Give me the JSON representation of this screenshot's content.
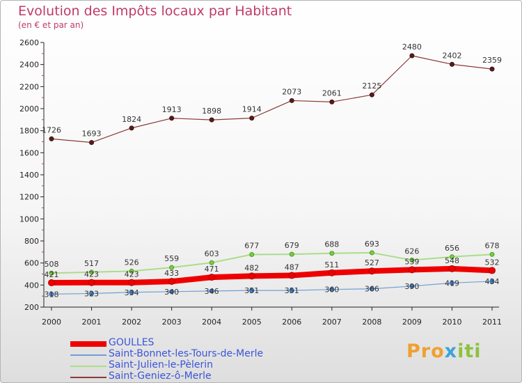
{
  "title": "Evolution des Impôts locaux par Habitant",
  "subtitle": "(en € et par an)",
  "logo": "Proxiti",
  "chart_data": {
    "type": "line",
    "x": [
      2000,
      2001,
      2002,
      2003,
      2004,
      2005,
      2006,
      2007,
      2008,
      2009,
      2010,
      2011
    ],
    "ylim": [
      200,
      2600
    ],
    "yticks": [
      200,
      400,
      600,
      800,
      1000,
      1200,
      1400,
      1600,
      1800,
      2000,
      2200,
      2400,
      2600
    ],
    "grid": false,
    "legend_position": "bottom-left",
    "series": [
      {
        "name": "GOULLES",
        "color": "#ee0000",
        "values": [
          421,
          423,
          423,
          433,
          471,
          482,
          487,
          511,
          527,
          539,
          548,
          532
        ],
        "labels": [
          "421",
          "423",
          "423",
          "433",
          "471",
          "482",
          "487",
          "511",
          "527",
          "539",
          "548",
          "532"
        ]
      },
      {
        "name": "Saint-Bonnet-les-Tours-de-Merle",
        "color": "#6f9fd6",
        "values": [
          318,
          323,
          334,
          340,
          346,
          351,
          351,
          360,
          366,
          390,
          419,
          434
        ],
        "labels": [
          "318",
          "323",
          "334",
          "340",
          "346",
          "351",
          "351",
          "360",
          "366",
          "390",
          "419",
          "434"
        ]
      },
      {
        "name": "Saint-Julien-le-Pèlerin",
        "color": "#aadd88",
        "values": [
          508,
          517,
          526,
          559,
          603,
          677,
          679,
          688,
          693,
          626,
          656,
          678
        ],
        "labels": [
          "508",
          "517",
          "526",
          "559",
          "603",
          "677",
          "679",
          "688",
          "693",
          "626",
          "656",
          "678"
        ]
      },
      {
        "name": "Saint-Geniez-ô-Merle",
        "color": "#8b3a3a",
        "values": [
          1726,
          1693,
          1824,
          1913,
          1898,
          1914,
          2073,
          2061,
          2125,
          2480,
          2402,
          2359
        ],
        "labels": [
          "1726",
          "1693",
          "1824",
          "1913",
          "1898",
          "1914",
          "2073",
          "2061",
          "2125",
          "2480",
          "2402",
          "2359"
        ]
      }
    ]
  }
}
